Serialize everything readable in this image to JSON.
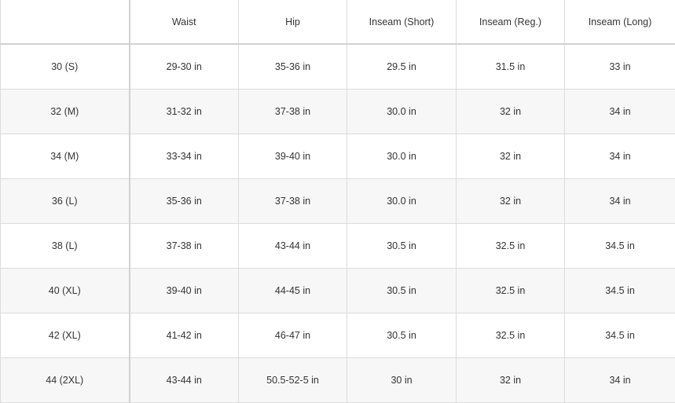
{
  "table": {
    "headers": [
      "",
      "Waist",
      "Hip",
      "Inseam (Short)",
      "Inseam (Reg.)",
      "Inseam (Long)"
    ],
    "rows": [
      [
        "30 (S)",
        "29-30 in",
        "35-36 in",
        "29.5 in",
        "31.5 in",
        "33 in"
      ],
      [
        "32 (M)",
        "31-32 in",
        "37-38 in",
        "30.0 in",
        "32 in",
        "34 in"
      ],
      [
        "34 (M)",
        "33-34 in",
        "39-40 in",
        "30.0 in",
        "32 in",
        "34 in"
      ],
      [
        "36 (L)",
        "35-36 in",
        "37-38 in",
        "30.0 in",
        "32 in",
        "34 in"
      ],
      [
        "38 (L)",
        "37-38 in",
        "43-44 in",
        "30.5 in",
        "32.5 in",
        "34.5 in"
      ],
      [
        "40 (XL)",
        "39-40 in",
        "44-45 in",
        "30.5 in",
        "32.5 in",
        "34.5 in"
      ],
      [
        "42 (XL)",
        "41-42 in",
        "46-47 in",
        "30.5 in",
        "32.5 in",
        "34.5 in"
      ],
      [
        "44 (2XL)",
        "43-44 in",
        "50.5-52-5 in",
        "30 in",
        "32 in",
        "34 in"
      ]
    ]
  }
}
